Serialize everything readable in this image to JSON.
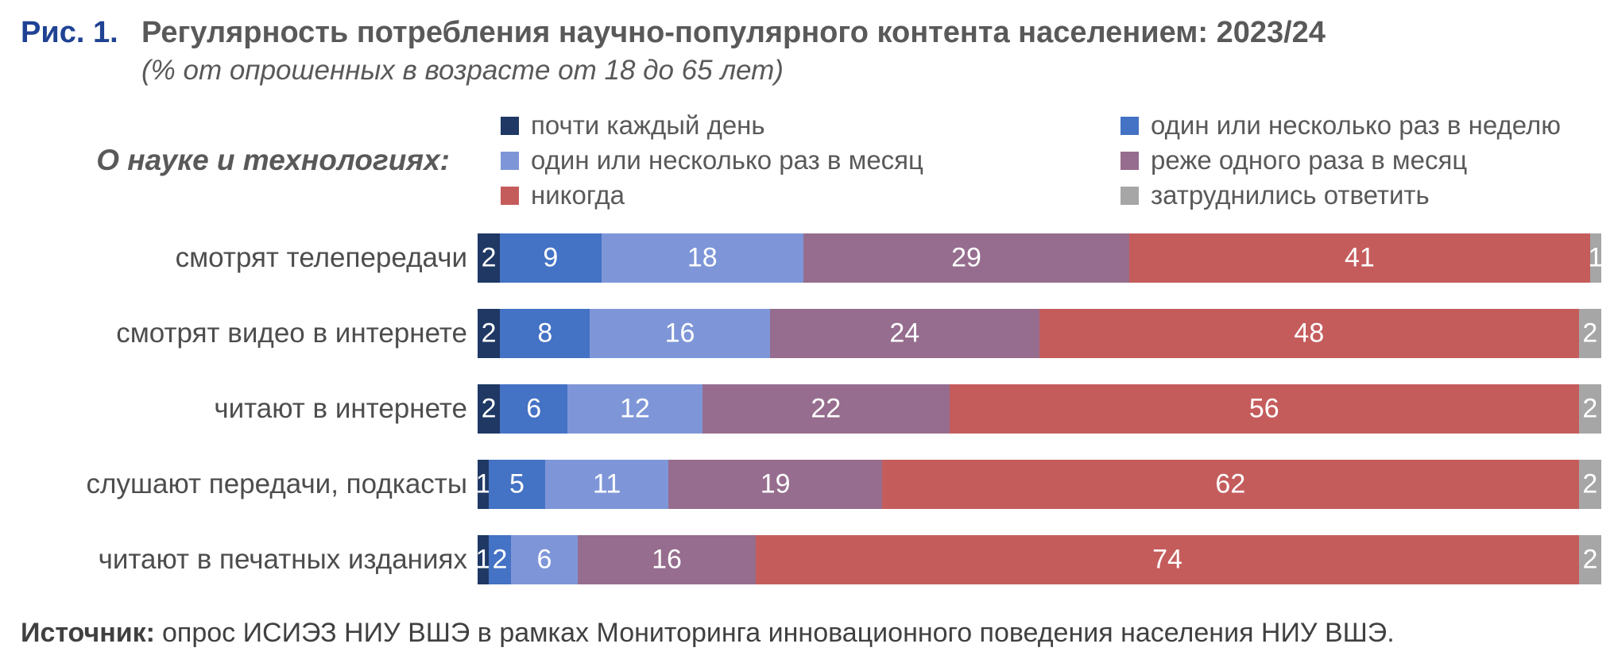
{
  "figure": {
    "label": "Рис. 1.",
    "title": "Регулярность потребления научно-популярного контента населением: 2023/24",
    "subtitle": "(% от опрошенных в возрасте от 18 до 65 лет)",
    "group_label": "О науке и технологиях:",
    "source_label": "Источник:",
    "source_text": "опрос ИСИЭЗ НИУ ВШЭ в рамках Мониторинга инновационного поведения населения НИУ ВШЭ."
  },
  "colors": {
    "figure_number_blue": "#1F4293",
    "title_gray": "#595959",
    "bar_label_gray": "#4D4D4D",
    "value_text": "#FFFFFF"
  },
  "chart_data": {
    "type": "bar",
    "orientation": "horizontal-stacked",
    "xlim": [
      0,
      100
    ],
    "grid": false,
    "legend_position": "top",
    "legend_columns": [
      [
        0,
        2,
        4
      ],
      [
        1,
        3,
        5
      ]
    ],
    "value_labels": "inside-white",
    "categories": [
      "смотрят телепередачи",
      "смотрят видео в интернете",
      "читают в интернете",
      "слушают передачи, подкасты",
      "читают в печатных изданиях"
    ],
    "series": [
      {
        "name": "почти каждый день",
        "color": "#1F3864",
        "values": [
          2,
          2,
          2,
          1,
          1
        ]
      },
      {
        "name": "один или несколько раз в неделю",
        "color": "#4472C4",
        "values": [
          9,
          8,
          6,
          5,
          2
        ]
      },
      {
        "name": "один или несколько раз в месяц",
        "color": "#7E96D8",
        "values": [
          18,
          16,
          12,
          11,
          6
        ]
      },
      {
        "name": "реже одного раза в месяц",
        "color": "#966D8E",
        "values": [
          29,
          24,
          22,
          19,
          16
        ]
      },
      {
        "name": "никогда",
        "color": "#C55C5C",
        "values": [
          41,
          48,
          56,
          62,
          74
        ]
      },
      {
        "name": "затруднились ответить",
        "color": "#A6A6A6",
        "values": [
          1,
          2,
          2,
          2,
          2
        ]
      }
    ]
  }
}
